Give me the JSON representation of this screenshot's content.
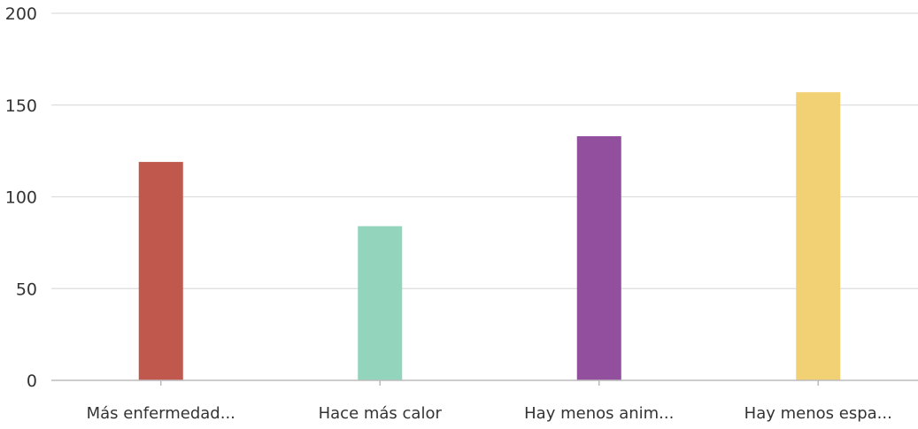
{
  "chart_data": {
    "type": "bar",
    "categories": [
      "Más enfermedad...",
      "Hace más calor",
      "Hay menos anim...",
      "Hay menos espa..."
    ],
    "values": [
      119,
      84,
      133,
      157
    ],
    "colors": [
      "#c0584e",
      "#93d4bd",
      "#914f9e",
      "#f2d174"
    ],
    "ylim": [
      0,
      200
    ],
    "yticks": [
      0,
      50,
      100,
      150,
      200
    ],
    "ytick_labels": [
      "0",
      "50",
      "100",
      "150",
      "200"
    ],
    "grid": true,
    "gridline_color": "#dddddd",
    "axis_color": "#bbbbbb",
    "title": "",
    "xlabel": "",
    "ylabel": ""
  }
}
